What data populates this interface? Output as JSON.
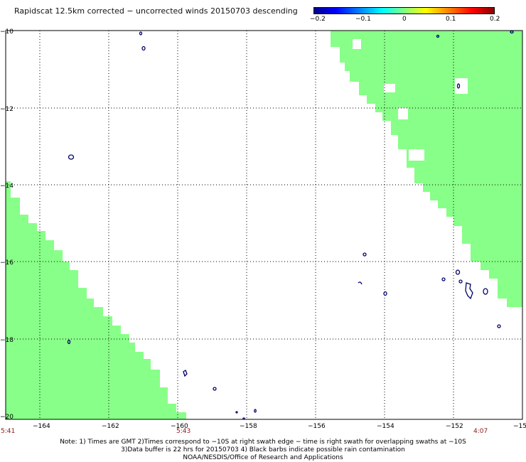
{
  "title": "Rapidscat 12.5km corrected − uncorrected winds 20150703 descending",
  "colorbar": {
    "ticks": [
      "−0.2",
      "−0.1",
      "0",
      "0.1",
      "0.2"
    ],
    "colors": [
      "#00008b",
      "#0000ff",
      "#00ffff",
      "#80ff80",
      "#ffff00",
      "#ff0000",
      "#8b0000"
    ]
  },
  "map": {
    "lon_labels": [
      "−164",
      "−162",
      "−160",
      "−158",
      "−156",
      "−154",
      "−152",
      "−15"
    ],
    "lat_labels": [
      "−10",
      "−12",
      "−14",
      "−16",
      "−18",
      "−20"
    ],
    "lon_range": [
      -165.0,
      -150.0
    ],
    "lat_range": [
      -20.0,
      -10.0
    ],
    "swath_color": "#88ff88",
    "coast_color": "#000066",
    "grid": "dotted",
    "time_labels": [
      "5:41",
      "5:43",
      "4:07"
    ]
  },
  "notes": {
    "line1": "Note: 1) Times are GMT 2)Times correspond to −10S at right swath edge − time is right swath for overlapping swaths at −10S",
    "line2": "3)Data buffer is 22 hrs for 20150703 4) Black barbs indicate possible rain contamination",
    "line3": "NOAA/NESDIS/Office of Research and Applications"
  }
}
